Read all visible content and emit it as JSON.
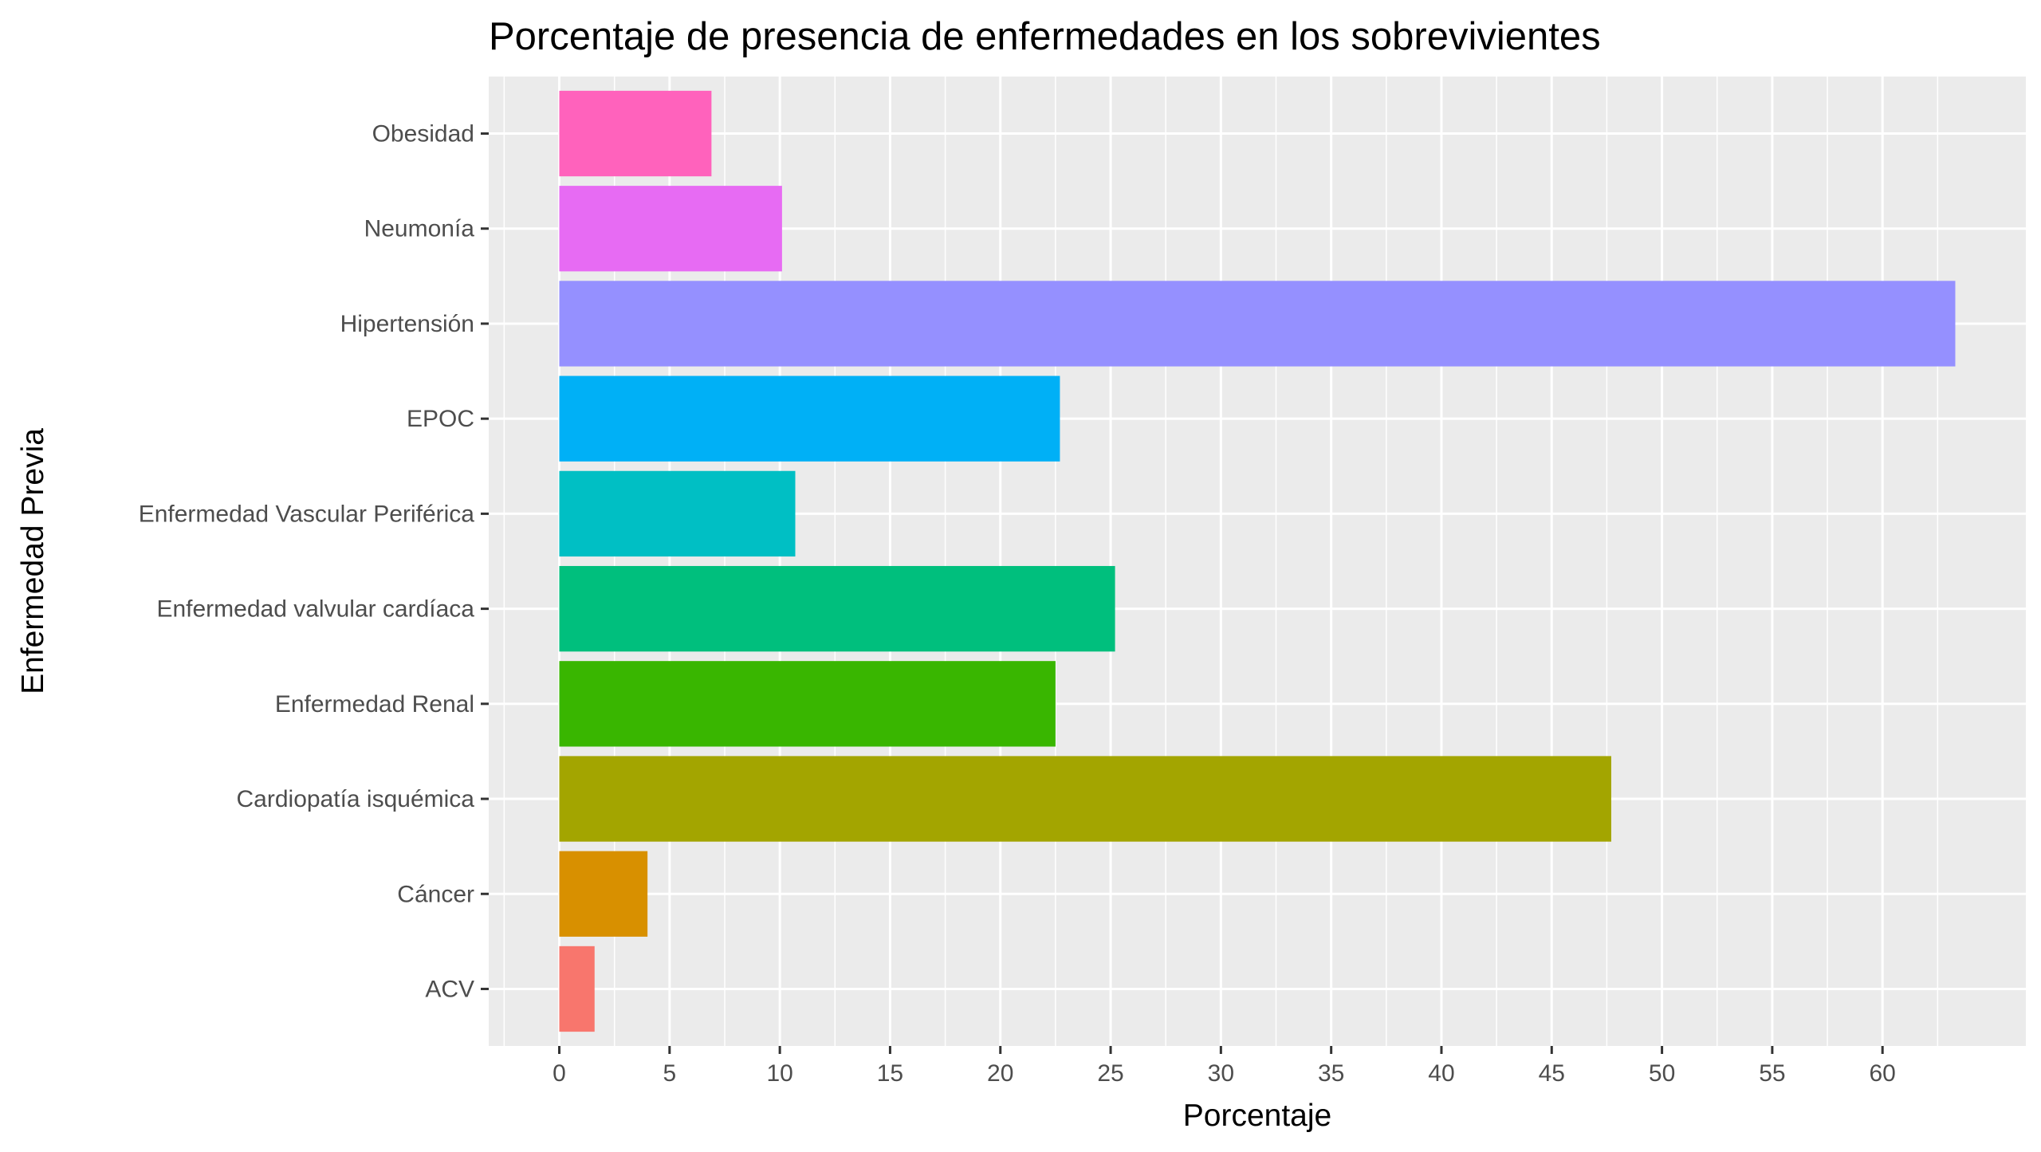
{
  "chart_data": {
    "type": "bar",
    "orientation": "horizontal",
    "title": "Porcentaje de presencia de enfermedades en los sobrevivientes",
    "xlabel": "Porcentaje",
    "ylabel": "Enfermedad Previa",
    "xlim": [
      -3.2,
      66.5
    ],
    "x_ticks": [
      0,
      5,
      10,
      15,
      20,
      25,
      30,
      35,
      40,
      45,
      50,
      55,
      60
    ],
    "x_tick_labels": [
      "0",
      "5",
      "10",
      "15",
      "20",
      "25",
      "30",
      "35",
      "40",
      "45",
      "50",
      "55",
      "60"
    ],
    "grid": true,
    "legend": "none",
    "categories": [
      "ACV",
      "Cáncer",
      "Cardiopatía isquémica",
      "Enfermedad Renal",
      "Enfermedad valvular cardíaca",
      "Enfermedad Vascular Periférica",
      "EPOC",
      "Hipertensión",
      "Neumonía",
      "Obesidad"
    ],
    "values": [
      1.6,
      4.0,
      47.7,
      22.5,
      25.2,
      10.7,
      22.7,
      63.3,
      10.1,
      6.9
    ],
    "colors": [
      "#F8766D",
      "#D89000",
      "#A3A500",
      "#39B600",
      "#00BF7D",
      "#00BFC4",
      "#00B0F6",
      "#9590FF",
      "#E76BF3",
      "#FF62BC"
    ]
  }
}
